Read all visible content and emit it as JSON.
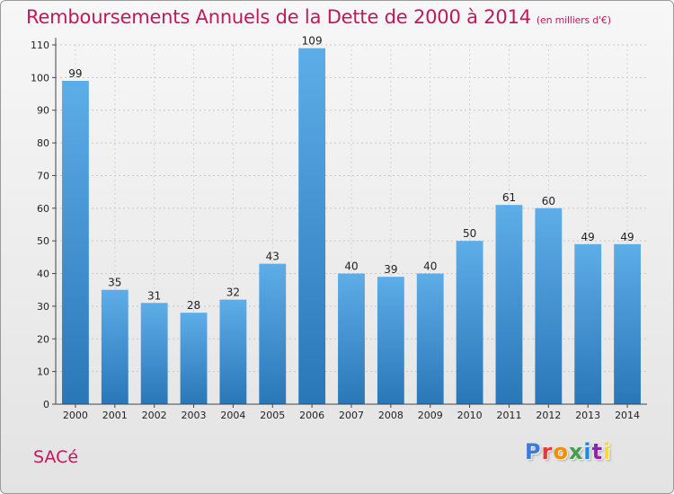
{
  "title": "Remboursements Annuels de la Dette de 2000 à 2014",
  "subtitle": "(en milliers d'€)",
  "commune": "SACé",
  "logo": {
    "text": "Proxiti",
    "colors": [
      "#3a7bd5",
      "#e53935",
      "#fb8c00",
      "#43a047",
      "#1e88e5",
      "#8e24aa",
      "#fdd835"
    ]
  },
  "colors": {
    "title": "#c2185b",
    "bar_top": "#5dade8",
    "bar_bottom": "#2a77b8"
  },
  "chart_data": {
    "type": "bar",
    "title": "Remboursements Annuels de la Dette de 2000 à 2014",
    "categories": [
      "2000",
      "2001",
      "2002",
      "2003",
      "2004",
      "2005",
      "2006",
      "2007",
      "2008",
      "2009",
      "2010",
      "2011",
      "2012",
      "2013",
      "2014"
    ],
    "values": [
      99,
      35,
      31,
      28,
      32,
      43,
      109,
      40,
      39,
      40,
      50,
      61,
      60,
      49,
      49
    ],
    "yticks": [
      0,
      10,
      20,
      30,
      40,
      50,
      60,
      70,
      80,
      90,
      100,
      110
    ],
    "ylim": [
      0,
      110
    ],
    "grid": true,
    "xlabel": "",
    "ylabel": ""
  }
}
